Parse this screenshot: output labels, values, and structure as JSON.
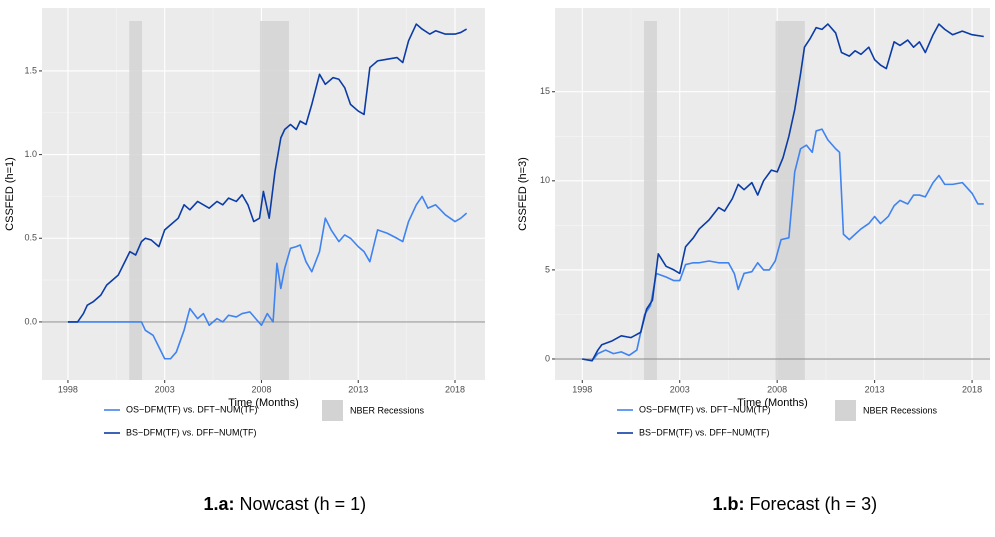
{
  "chart_data": [
    {
      "type": "line",
      "y_label": "CSSFED (h=1)",
      "x_label": "Time (Months)",
      "caption_label": "1.a:",
      "caption": "Nowcast (h = 1)",
      "xlim": [
        1996.66,
        2019.55
      ],
      "xticks": [
        1998,
        2003,
        2008,
        2013,
        2018
      ],
      "ylim": [
        -0.347,
        1.876
      ],
      "yticks": [
        {
          "value": 0,
          "label": "0.0"
        },
        0.5,
        {
          "value": 1,
          "label": "1.0"
        },
        1.5
      ],
      "hline": 0,
      "grid": true,
      "recessions": {
        "name": "NBER Recessions",
        "color": "#d3d3d3",
        "spans": [
          [
            2001.17,
            2001.83
          ],
          [
            2007.92,
            2009.42
          ]
        ]
      },
      "series": [
        {
          "name": "OS−DFM(TF) vs. DFT−NUM(TF)",
          "color": "#3f83f0",
          "x": [
            1998.0,
            2001.8,
            2002.0,
            2002.4,
            2002.7,
            2003.0,
            2003.3,
            2003.6,
            2004.0,
            2004.3,
            2004.7,
            2005.0,
            2005.3,
            2005.7,
            2006.0,
            2006.3,
            2006.7,
            2007.0,
            2007.4,
            2007.7,
            2008.0,
            2008.3,
            2008.6,
            2008.8,
            2009.0,
            2009.2,
            2009.5,
            2009.8,
            2010.0,
            2010.3,
            2010.6,
            2011.0,
            2011.3,
            2011.6,
            2012.0,
            2012.3,
            2012.6,
            2013.0,
            2013.3,
            2013.6,
            2014.0,
            2014.5,
            2015.0,
            2015.3,
            2015.6,
            2016.0,
            2016.3,
            2016.6,
            2017.0,
            2017.5,
            2018.0,
            2018.3,
            2018.6
          ],
          "values": [
            0,
            0,
            -0.05,
            -0.08,
            -0.15,
            -0.22,
            -0.22,
            -0.18,
            -0.05,
            0.08,
            0.02,
            0.05,
            -0.02,
            0.02,
            0.0,
            0.04,
            0.03,
            0.05,
            0.06,
            0.02,
            -0.02,
            0.05,
            0.0,
            0.35,
            0.2,
            0.32,
            0.44,
            0.45,
            0.46,
            0.36,
            0.3,
            0.42,
            0.62,
            0.55,
            0.48,
            0.52,
            0.5,
            0.45,
            0.42,
            0.36,
            0.55,
            0.53,
            0.5,
            0.48,
            0.6,
            0.7,
            0.75,
            0.68,
            0.7,
            0.64,
            0.6,
            0.62,
            0.65
          ]
        },
        {
          "name": "BS−DFM(TF) vs. DFF−NUM(TF)",
          "color": "#0b3ca6",
          "x": [
            1998.0,
            1998.5,
            1998.8,
            1999.0,
            1999.3,
            1999.7,
            2000.0,
            2000.3,
            2000.6,
            2000.9,
            2001.2,
            2001.5,
            2001.8,
            2002.0,
            2002.3,
            2002.7,
            2003.0,
            2003.3,
            2003.7,
            2004.0,
            2004.3,
            2004.7,
            2005.0,
            2005.3,
            2005.7,
            2006.0,
            2006.3,
            2006.7,
            2007.0,
            2007.3,
            2007.6,
            2007.9,
            2008.1,
            2008.4,
            2008.7,
            2009.0,
            2009.2,
            2009.5,
            2009.8,
            2010.0,
            2010.3,
            2010.6,
            2011.0,
            2011.3,
            2011.7,
            2012.0,
            2012.3,
            2012.6,
            2013.0,
            2013.3,
            2013.6,
            2014.0,
            2014.5,
            2015.0,
            2015.3,
            2015.6,
            2016.0,
            2016.3,
            2016.7,
            2017.0,
            2017.5,
            2018.0,
            2018.3,
            2018.6
          ],
          "values": [
            0,
            0.0,
            0.05,
            0.1,
            0.12,
            0.16,
            0.22,
            0.25,
            0.28,
            0.35,
            0.42,
            0.4,
            0.48,
            0.5,
            0.49,
            0.45,
            0.55,
            0.58,
            0.62,
            0.7,
            0.67,
            0.72,
            0.7,
            0.68,
            0.72,
            0.7,
            0.74,
            0.72,
            0.76,
            0.7,
            0.6,
            0.62,
            0.78,
            0.62,
            0.9,
            1.1,
            1.15,
            1.18,
            1.15,
            1.2,
            1.18,
            1.3,
            1.48,
            1.42,
            1.46,
            1.45,
            1.4,
            1.3,
            1.26,
            1.24,
            1.52,
            1.56,
            1.57,
            1.58,
            1.55,
            1.68,
            1.78,
            1.75,
            1.72,
            1.74,
            1.72,
            1.72,
            1.73,
            1.75
          ]
        }
      ]
    },
    {
      "type": "line",
      "y_label": "CSSFED (h=3)",
      "x_label": "Time (Months)",
      "caption_label": "1.b:",
      "caption": "Forecast (h = 3)",
      "xlim": [
        1996.6,
        2018.92
      ],
      "xticks": [
        1998,
        2003,
        2008,
        2013,
        2018
      ],
      "ylim": [
        -1.18,
        19.7
      ],
      "yticks": [
        0,
        5,
        10,
        15
      ],
      "hline": 0,
      "grid": true,
      "recessions": {
        "name": "NBER Recessions",
        "color": "#d3d3d3",
        "spans": [
          [
            2001.17,
            2001.83
          ],
          [
            2007.92,
            2009.42
          ]
        ]
      },
      "series": [
        {
          "name": "OS−DFM(TF) vs. DFT−NUM(TF)",
          "color": "#3f83f0",
          "x": [
            1998.0,
            1998.5,
            1998.8,
            1999.2,
            1999.6,
            2000.0,
            2000.4,
            2000.8,
            2001.2,
            2001.5,
            2001.8,
            2002.3,
            2002.7,
            2003.0,
            2003.3,
            2003.7,
            2004.0,
            2004.5,
            2005.0,
            2005.5,
            2005.8,
            2006.0,
            2006.3,
            2006.7,
            2007.0,
            2007.3,
            2007.6,
            2007.9,
            2008.2,
            2008.6,
            2008.9,
            2009.2,
            2009.5,
            2009.8,
            2010.0,
            2010.3,
            2010.6,
            2011.0,
            2011.2,
            2011.4,
            2011.7,
            2012.0,
            2012.3,
            2012.7,
            2013.0,
            2013.3,
            2013.7,
            2014.0,
            2014.3,
            2014.7,
            2015.0,
            2015.3,
            2015.6,
            2016.0,
            2016.3,
            2016.6,
            2017.0,
            2017.5,
            2018.0,
            2018.3,
            2018.6
          ],
          "values": [
            0,
            -0.1,
            0.3,
            0.5,
            0.3,
            0.4,
            0.2,
            0.5,
            2.5,
            3.0,
            4.8,
            4.6,
            4.4,
            4.4,
            5.3,
            5.4,
            5.4,
            5.5,
            5.4,
            5.4,
            4.8,
            3.9,
            4.8,
            4.9,
            5.4,
            5.0,
            5.0,
            5.5,
            6.7,
            6.8,
            10.5,
            11.8,
            12.0,
            11.6,
            12.8,
            12.9,
            12.3,
            11.8,
            11.6,
            7.0,
            6.7,
            7.0,
            7.3,
            7.6,
            8.0,
            7.6,
            8.0,
            8.6,
            8.9,
            8.7,
            9.2,
            9.2,
            9.1,
            9.9,
            10.3,
            9.8,
            9.8,
            9.9,
            9.3,
            8.7,
            8.7
          ]
        },
        {
          "name": "BS−DFM(TF) vs. DFF−NUM(TF)",
          "color": "#0b3ca6",
          "x": [
            1998.0,
            1998.5,
            1998.8,
            1999.0,
            1999.5,
            2000.0,
            2000.5,
            2001.0,
            2001.3,
            2001.6,
            2001.9,
            2002.3,
            2002.7,
            2003.0,
            2003.3,
            2003.7,
            2004.0,
            2004.5,
            2005.0,
            2005.3,
            2005.7,
            2006.0,
            2006.3,
            2006.7,
            2007.0,
            2007.3,
            2007.7,
            2008.0,
            2008.3,
            2008.6,
            2008.9,
            2009.2,
            2009.4,
            2009.7,
            2010.0,
            2010.3,
            2010.6,
            2011.0,
            2011.3,
            2011.7,
            2012.0,
            2012.3,
            2012.7,
            2013.0,
            2013.3,
            2013.6,
            2014.0,
            2014.3,
            2014.7,
            2015.0,
            2015.3,
            2015.6,
            2016.0,
            2016.3,
            2016.6,
            2017.0,
            2017.5,
            2018.0,
            2018.6
          ],
          "values": [
            0,
            -0.1,
            0.5,
            0.8,
            1.0,
            1.3,
            1.2,
            1.5,
            2.8,
            3.3,
            5.9,
            5.2,
            5.0,
            4.8,
            6.3,
            6.8,
            7.3,
            7.8,
            8.5,
            8.3,
            9.0,
            9.8,
            9.5,
            9.9,
            9.2,
            10.0,
            10.6,
            10.5,
            11.3,
            12.5,
            14.0,
            16.0,
            17.5,
            18.0,
            18.6,
            18.5,
            18.8,
            18.3,
            17.2,
            17.0,
            17.3,
            17.1,
            17.5,
            16.8,
            16.5,
            16.3,
            17.8,
            17.6,
            17.9,
            17.5,
            17.8,
            17.2,
            18.2,
            18.8,
            18.5,
            18.2,
            18.4,
            18.2,
            18.1
          ]
        }
      ]
    }
  ]
}
